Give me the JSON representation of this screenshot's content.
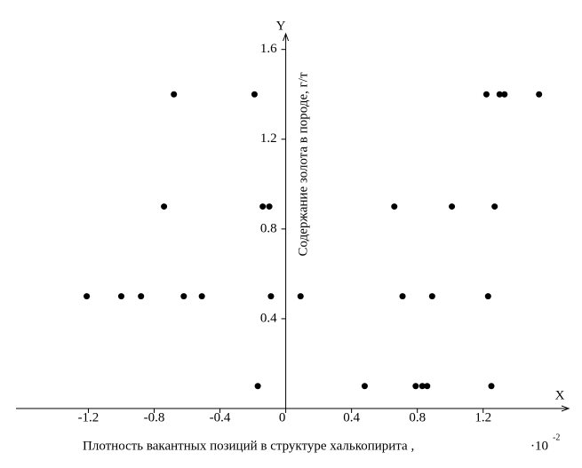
{
  "chart_data": {
    "type": "scatter",
    "x_axis_name": "X",
    "y_axis_name": "Y",
    "xlabel": "Плотность вакантных позиций в структуре халькопирита ,",
    "x_multiplier": {
      "base": "·10",
      "exponent": "-2"
    },
    "ylabel": "Содержание золота в породе, г/т",
    "color": "#000000",
    "x": [
      -0.68,
      -0.19,
      1.22,
      1.3,
      1.33,
      1.54,
      -0.74,
      -0.14,
      -0.1,
      0.66,
      1.01,
      1.27,
      -1.21,
      -1.0,
      -0.88,
      -0.62,
      -0.51,
      -0.09,
      0.09,
      0.71,
      0.89,
      1.23,
      -0.17,
      0.48,
      0.79,
      0.83,
      0.86,
      1.25
    ],
    "values": [
      1.4,
      1.4,
      1.4,
      1.4,
      1.4,
      1.4,
      0.9,
      0.9,
      0.9,
      0.9,
      0.9,
      0.9,
      0.5,
      0.5,
      0.5,
      0.5,
      0.5,
      0.5,
      0.5,
      0.5,
      0.5,
      0.5,
      0.1,
      0.1,
      0.1,
      0.1,
      0.1,
      0.1
    ],
    "xlim": [
      -1.64,
      1.72
    ],
    "ylim": [
      0,
      1.67
    ],
    "xticks": [
      -1.2,
      -0.8,
      -0.4,
      0,
      0.4,
      0.8,
      1.2
    ],
    "yticks": [
      0.4,
      0.8,
      1.2,
      1.6
    ]
  }
}
